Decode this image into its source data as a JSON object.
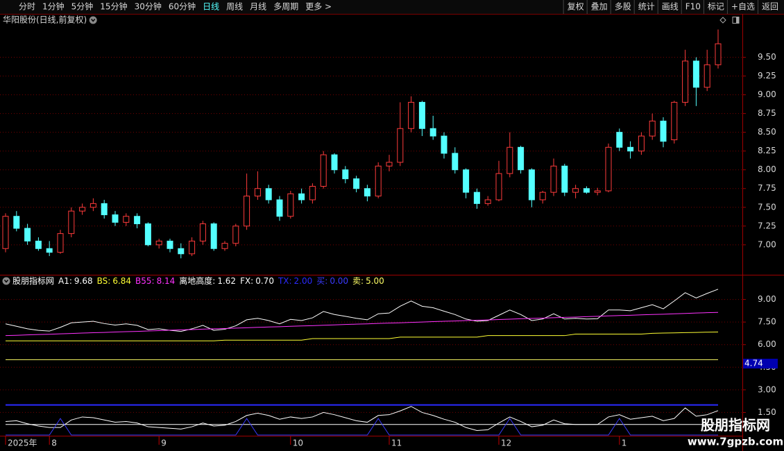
{
  "toolbar": {
    "left": [
      "分时",
      "1分钟",
      "5分钟",
      "15分钟",
      "30分钟",
      "60分钟",
      "日线",
      "周线",
      "月线",
      "多周期",
      "更多 >"
    ],
    "active_index": 6,
    "right": [
      "复权",
      "叠加",
      "多股",
      "统计",
      "画线",
      "F10",
      "标记",
      "+自选",
      "返回"
    ]
  },
  "chart_data": [
    {
      "type": "candlestick",
      "title": "华阳股份(日线,前复权)",
      "up_color": "#ff3b3b",
      "down_color": "#54ffff",
      "ylim": [
        6.61,
        10.06
      ],
      "yticks": [
        {
          "value": 7,
          "label": "7.00"
        },
        {
          "value": 7.25,
          "label": "7.25"
        },
        {
          "value": 7.5,
          "label": "7.50"
        },
        {
          "value": 7.75,
          "label": "7.75"
        },
        {
          "value": 8,
          "label": "8.00"
        },
        {
          "value": 8.25,
          "label": "8.25"
        },
        {
          "value": 8.5,
          "label": "8.50"
        },
        {
          "value": 8.75,
          "label": "8.75"
        },
        {
          "value": 9,
          "label": "9.00"
        },
        {
          "value": 9.25,
          "label": "9.25"
        },
        {
          "value": 9.5,
          "label": "9.50"
        }
      ],
      "grid": true,
      "categories": [
        "2025年",
        null,
        null,
        null,
        "8",
        null,
        null,
        null,
        null,
        null,
        null,
        null,
        null,
        null,
        "9",
        null,
        null,
        null,
        null,
        null,
        null,
        null,
        null,
        null,
        null,
        null,
        "10",
        null,
        null,
        null,
        null,
        null,
        null,
        null,
        null,
        "11",
        null,
        null,
        null,
        null,
        null,
        null,
        null,
        null,
        null,
        "12",
        null,
        null,
        null,
        null,
        null,
        null,
        null,
        null,
        null,
        null,
        "1",
        null,
        null,
        null,
        null,
        null,
        null,
        null,
        null,
        null
      ],
      "candles": [
        [
          6.95,
          7.42,
          6.9,
          7.38
        ],
        [
          7.38,
          7.45,
          7.18,
          7.22
        ],
        [
          7.22,
          7.28,
          7.0,
          7.05
        ],
        [
          7.05,
          7.1,
          6.92,
          6.95
        ],
        [
          6.95,
          7.05,
          6.85,
          6.9
        ],
        [
          6.9,
          7.2,
          6.88,
          7.15
        ],
        [
          7.15,
          7.5,
          7.1,
          7.45
        ],
        [
          7.45,
          7.55,
          7.4,
          7.5
        ],
        [
          7.5,
          7.62,
          7.45,
          7.55
        ],
        [
          7.55,
          7.6,
          7.35,
          7.4
        ],
        [
          7.4,
          7.45,
          7.25,
          7.3
        ],
        [
          7.3,
          7.42,
          7.25,
          7.38
        ],
        [
          7.38,
          7.42,
          7.22,
          7.28
        ],
        [
          7.28,
          7.3,
          6.98,
          7.0
        ],
        [
          7.0,
          7.08,
          6.95,
          7.05
        ],
        [
          7.05,
          7.08,
          6.9,
          6.95
        ],
        [
          6.95,
          7.02,
          6.82,
          6.88
        ],
        [
          6.88,
          7.1,
          6.85,
          7.05
        ],
        [
          7.05,
          7.32,
          7.0,
          7.28
        ],
        [
          7.28,
          7.3,
          6.92,
          6.95
        ],
        [
          6.95,
          7.05,
          6.92,
          7.02
        ],
        [
          7.02,
          7.28,
          6.98,
          7.25
        ],
        [
          7.25,
          7.95,
          7.2,
          7.65
        ],
        [
          7.65,
          7.98,
          7.6,
          7.75
        ],
        [
          7.75,
          7.8,
          7.55,
          7.6
        ],
        [
          7.6,
          7.65,
          7.32,
          7.38
        ],
        [
          7.38,
          7.72,
          7.35,
          7.68
        ],
        [
          7.68,
          7.75,
          7.55,
          7.6
        ],
        [
          7.6,
          7.82,
          7.55,
          7.78
        ],
        [
          7.78,
          8.25,
          7.75,
          8.2
        ],
        [
          8.2,
          8.22,
          7.95,
          8.0
        ],
        [
          8.0,
          8.05,
          7.82,
          7.88
        ],
        [
          7.88,
          7.92,
          7.7,
          7.75
        ],
        [
          7.75,
          7.8,
          7.58,
          7.65
        ],
        [
          7.65,
          8.1,
          7.62,
          8.05
        ],
        [
          8.05,
          8.2,
          7.98,
          8.1
        ],
        [
          8.1,
          8.9,
          8.05,
          8.55
        ],
        [
          8.55,
          8.98,
          8.5,
          8.9
        ],
        [
          8.9,
          8.92,
          8.45,
          8.55
        ],
        [
          8.55,
          8.72,
          8.4,
          8.45
        ],
        [
          8.45,
          8.5,
          8.15,
          8.22
        ],
        [
          8.22,
          8.3,
          7.95,
          8.0
        ],
        [
          8.0,
          8.02,
          7.62,
          7.7
        ],
        [
          7.7,
          7.75,
          7.48,
          7.55
        ],
        [
          7.55,
          7.65,
          7.52,
          7.6
        ],
        [
          7.6,
          8.12,
          7.58,
          7.95
        ],
        [
          7.95,
          8.5,
          7.9,
          8.3
        ],
        [
          8.3,
          8.32,
          7.95,
          8.0
        ],
        [
          8.0,
          8.02,
          7.5,
          7.6
        ],
        [
          7.6,
          7.72,
          7.55,
          7.7
        ],
        [
          7.7,
          8.15,
          7.65,
          8.05
        ],
        [
          8.05,
          8.08,
          7.65,
          7.7
        ],
        [
          7.7,
          7.8,
          7.62,
          7.75
        ],
        [
          7.75,
          7.78,
          7.68,
          7.7
        ],
        [
          7.7,
          7.76,
          7.66,
          7.72
        ],
        [
          7.72,
          8.35,
          7.7,
          8.3
        ],
        [
          8.5,
          8.55,
          8.25,
          8.3
        ],
        [
          8.3,
          8.38,
          8.15,
          8.25
        ],
        [
          8.25,
          8.5,
          8.2,
          8.45
        ],
        [
          8.45,
          8.75,
          8.4,
          8.65
        ],
        [
          8.65,
          8.7,
          8.3,
          8.38
        ],
        [
          8.4,
          8.92,
          8.35,
          8.9
        ],
        [
          8.9,
          9.6,
          8.85,
          9.45
        ],
        [
          9.45,
          9.5,
          8.85,
          9.1
        ],
        [
          9.1,
          9.6,
          9.05,
          9.4
        ],
        [
          9.4,
          9.87,
          9.35,
          9.68
        ]
      ]
    },
    {
      "type": "line",
      "indicator_name": "股朋指标网",
      "ylim": [
        0,
        10.5
      ],
      "yticks": [
        {
          "value": 1.5,
          "label": "1.50"
        },
        {
          "value": 3,
          "label": "3.00"
        },
        {
          "value": 4.5,
          "label": "4.50"
        },
        {
          "value": 6,
          "label": "6.00"
        },
        {
          "value": 7.5,
          "label": "7.50"
        },
        {
          "value": 9,
          "label": "9.00"
        }
      ],
      "cursor_value": 4.74,
      "series": [
        {
          "name": "A1:",
          "color": "#ffffff",
          "style": "line",
          "current": 9.68,
          "values": [
            7.38,
            7.22,
            7.05,
            6.95,
            6.9,
            7.15,
            7.45,
            7.5,
            7.55,
            7.4,
            7.3,
            7.38,
            7.28,
            7.0,
            7.05,
            6.95,
            6.88,
            7.05,
            7.28,
            6.95,
            7.02,
            7.25,
            7.65,
            7.75,
            7.6,
            7.38,
            7.68,
            7.6,
            7.78,
            8.2,
            8.0,
            7.88,
            7.75,
            7.65,
            8.05,
            8.1,
            8.55,
            8.9,
            8.55,
            8.45,
            8.22,
            8.0,
            7.7,
            7.55,
            7.6,
            7.95,
            8.3,
            8.0,
            7.6,
            7.7,
            8.05,
            7.7,
            7.75,
            7.7,
            7.72,
            8.3,
            8.3,
            8.25,
            8.45,
            8.65,
            8.38,
            8.9,
            9.45,
            9.1,
            9.4,
            9.68
          ]
        },
        {
          "name": "BS:",
          "color": "#ffff33",
          "style": "line",
          "current": 6.84,
          "values": [
            6.25,
            6.25,
            6.25,
            6.25,
            6.25,
            6.25,
            6.25,
            6.25,
            6.25,
            6.25,
            6.25,
            6.25,
            6.25,
            6.25,
            6.25,
            6.25,
            6.25,
            6.25,
            6.25,
            6.25,
            6.3,
            6.3,
            6.3,
            6.3,
            6.3,
            6.3,
            6.3,
            6.3,
            6.4,
            6.4,
            6.4,
            6.4,
            6.4,
            6.4,
            6.4,
            6.4,
            6.5,
            6.5,
            6.5,
            6.5,
            6.5,
            6.5,
            6.5,
            6.5,
            6.6,
            6.6,
            6.6,
            6.6,
            6.6,
            6.6,
            6.6,
            6.6,
            6.7,
            6.7,
            6.7,
            6.7,
            6.7,
            6.7,
            6.7,
            6.75,
            6.77,
            6.78,
            6.8,
            6.81,
            6.83,
            6.84
          ]
        },
        {
          "name": "B55:",
          "color": "#ff33ff",
          "style": "line",
          "current": 8.14,
          "values": [
            6.6,
            6.62,
            6.65,
            6.67,
            6.69,
            6.72,
            6.74,
            6.77,
            6.79,
            6.81,
            6.84,
            6.86,
            6.88,
            6.91,
            6.93,
            6.96,
            6.98,
            7.0,
            7.03,
            7.05,
            7.07,
            7.1,
            7.12,
            7.15,
            7.17,
            7.19,
            7.22,
            7.24,
            7.26,
            7.29,
            7.31,
            7.34,
            7.36,
            7.38,
            7.41,
            7.43,
            7.45,
            7.48,
            7.5,
            7.53,
            7.55,
            7.57,
            7.6,
            7.62,
            7.64,
            7.67,
            7.69,
            7.72,
            7.74,
            7.76,
            7.79,
            7.81,
            7.83,
            7.86,
            7.88,
            7.91,
            7.93,
            7.95,
            7.98,
            8.0,
            8.02,
            8.05,
            8.07,
            8.1,
            8.12,
            8.14
          ]
        },
        {
          "name": "离地高度:",
          "color": "#ffffff",
          "style": "line",
          "current": 1.62,
          "values": [
            0.9,
            0.95,
            0.75,
            0.6,
            0.5,
            0.5,
            1.0,
            1.2,
            1.15,
            1.0,
            0.85,
            0.9,
            0.8,
            0.55,
            0.5,
            0.45,
            0.4,
            0.55,
            0.8,
            0.6,
            0.65,
            0.9,
            1.3,
            1.45,
            1.3,
            1.05,
            1.2,
            1.1,
            1.2,
            1.5,
            1.35,
            1.15,
            0.95,
            0.85,
            1.3,
            1.35,
            1.6,
            1.9,
            1.5,
            1.3,
            1.05,
            0.85,
            0.5,
            0.3,
            0.35,
            0.8,
            1.2,
            0.9,
            0.55,
            0.65,
            1.0,
            0.75,
            0.7,
            0.7,
            0.7,
            1.2,
            1.35,
            1.05,
            1.15,
            1.25,
            0.95,
            1.1,
            1.8,
            1.25,
            1.35,
            1.62
          ]
        },
        {
          "name": "FX:",
          "color": "#ffffff",
          "style": "level",
          "current": {
            "value": 0.7,
            "label": "0.70"
          }
        },
        {
          "name": "TX:",
          "color": "#2a2aff",
          "style": "level",
          "current": {
            "value": 2,
            "label": "2.00"
          }
        },
        {
          "name": "买:",
          "color": "#3a3aff",
          "style": "line",
          "current": {
            "value": 0,
            "label": "0.00"
          },
          "values": [
            0,
            0,
            0,
            0,
            0,
            1.1,
            0,
            0,
            0,
            0,
            0,
            0,
            0,
            0,
            0,
            0,
            0,
            0,
            0,
            0,
            0,
            0,
            1.1,
            0,
            0,
            0,
            0,
            0,
            0,
            0,
            0,
            0,
            0,
            0,
            1.1,
            0,
            0,
            0,
            0,
            0,
            0,
            0,
            0,
            0,
            0,
            0,
            1.1,
            0,
            0,
            0,
            0,
            0,
            0,
            0,
            0,
            0,
            1.1,
            0,
            0,
            0,
            0,
            0,
            0,
            0,
            0,
            0
          ]
        },
        {
          "name": "卖:",
          "color": "#ffff66",
          "style": "level",
          "current": {
            "value": 5,
            "label": "5.00"
          }
        }
      ]
    }
  ],
  "watermark": {
    "title": "股朋指标网",
    "url": "www.7gpzb.com"
  }
}
